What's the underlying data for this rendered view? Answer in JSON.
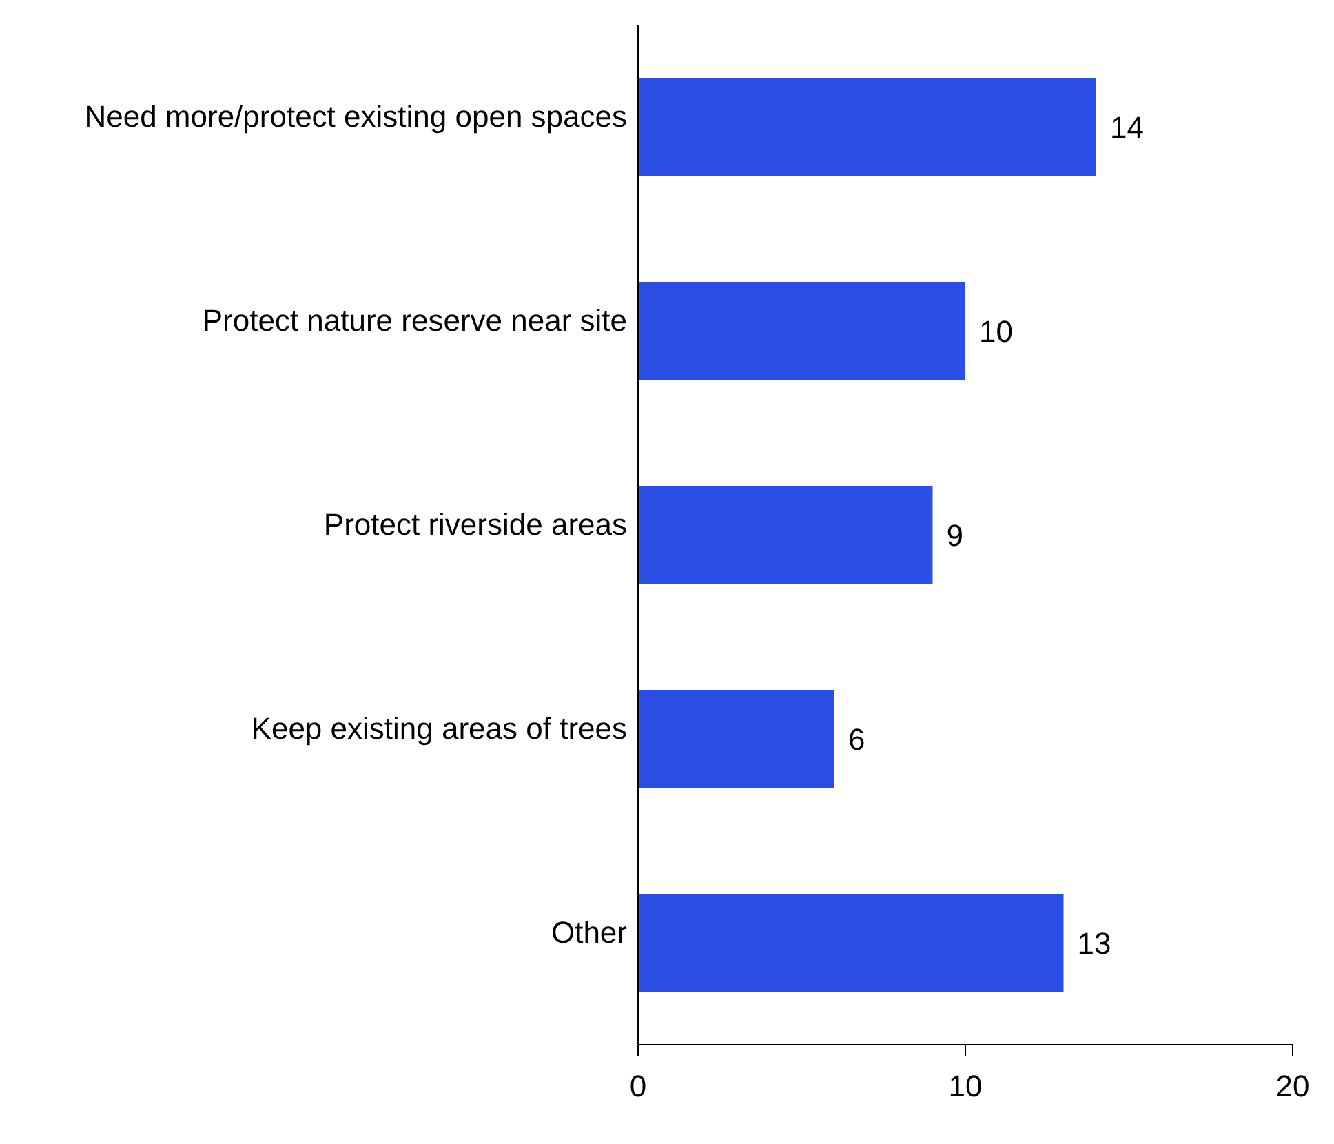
{
  "chart_data": {
    "type": "bar",
    "orientation": "horizontal",
    "categories": [
      "Need more/protect existing open spaces",
      "Protect nature reserve near site",
      "Protect riverside areas",
      "Keep existing areas of trees",
      "Other"
    ],
    "values": [
      14,
      10,
      9,
      6,
      13
    ],
    "color": "#2a4ee6",
    "xlim": [
      0,
      20
    ],
    "xticks": [
      0,
      10,
      20
    ],
    "data_labels": true
  }
}
